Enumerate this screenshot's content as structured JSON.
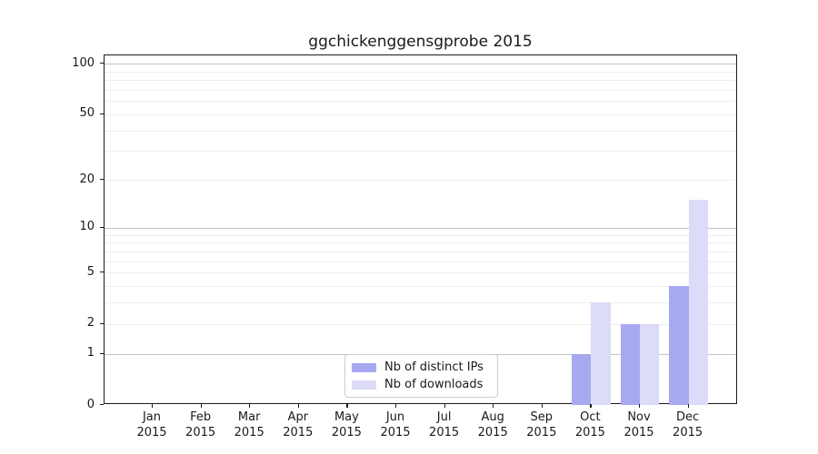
{
  "title": "ggchickenggensgprobe 2015",
  "chart_data": {
    "type": "bar",
    "title": "ggchickenggensgprobe 2015",
    "categories": [
      "Jan 2015",
      "Feb 2015",
      "Mar 2015",
      "Apr 2015",
      "May 2015",
      "Jun 2015",
      "Jul 2015",
      "Aug 2015",
      "Sep 2015",
      "Oct 2015",
      "Nov 2015",
      "Dec 2015"
    ],
    "x_tick_labels": [
      [
        "Jan",
        "2015"
      ],
      [
        "Feb",
        "2015"
      ],
      [
        "Mar",
        "2015"
      ],
      [
        "Apr",
        "2015"
      ],
      [
        "May",
        "2015"
      ],
      [
        "Jun",
        "2015"
      ],
      [
        "Jul",
        "2015"
      ],
      [
        "Aug",
        "2015"
      ],
      [
        "Sep",
        "2015"
      ],
      [
        "Oct",
        "2015"
      ],
      [
        "Nov",
        "2015"
      ],
      [
        "Dec",
        "2015"
      ]
    ],
    "series": [
      {
        "name": "Nb of distinct IPs",
        "color": "#a8a8f0",
        "values": [
          0,
          0,
          0,
          0,
          0,
          0,
          0,
          0,
          0,
          1,
          2,
          4
        ]
      },
      {
        "name": "Nb of downloads",
        "color": "#dcdcf8",
        "values": [
          0,
          0,
          0,
          0,
          0,
          0,
          0,
          0,
          0,
          3,
          2,
          15
        ]
      }
    ],
    "xlabel": "",
    "ylabel": "",
    "yscale": "log1p",
    "ylim": [
      0,
      112
    ],
    "ytick_values": [
      0,
      1,
      2,
      5,
      10,
      20,
      50,
      100
    ],
    "ytick_labels": [
      "0",
      "1",
      "2",
      "5",
      "10",
      "20",
      "50",
      "100"
    ],
    "grid": "horizontal",
    "grid_major_values": [
      1,
      10,
      100
    ],
    "grid_minor_values": [
      2,
      3,
      4,
      5,
      6,
      7,
      8,
      9,
      20,
      30,
      40,
      50,
      60,
      70,
      80,
      90
    ],
    "legend_position": "lower center-left inside plot"
  },
  "legend": {
    "entries": [
      {
        "label": "Nb of distinct IPs",
        "color": "#a8a8f0"
      },
      {
        "label": "Nb of downloads",
        "color": "#dcdcf8"
      }
    ]
  },
  "colors": {
    "background": "#ffffff",
    "text": "#1a1a1a",
    "spine": "#1a1a1a",
    "grid_major": "#c3c3c3",
    "grid_minor": "#ededed",
    "series_dark": "#a8a8f0",
    "series_light": "#dcdcf8",
    "legend_border": "#cccccc"
  }
}
